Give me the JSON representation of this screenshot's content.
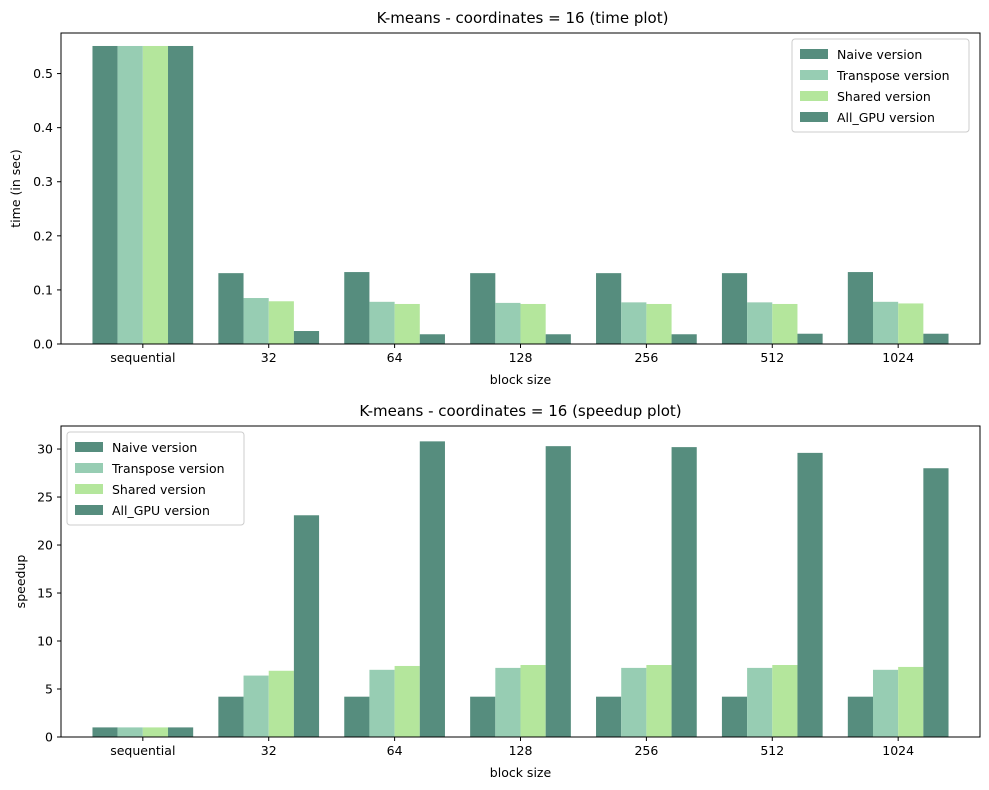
{
  "colors": {
    "naive": "#568d7e",
    "transpose": "#97cdb3",
    "shared": "#b4e69c",
    "all_gpu": "#568d7e"
  },
  "chart_data": [
    {
      "type": "bar",
      "title": "K-means - coordinates = 16 (time plot)",
      "xlabel": "block size",
      "ylabel": "time (in sec)",
      "ylim": [
        0,
        0.575
      ],
      "yticks": [
        "0.0",
        "0.1",
        "0.2",
        "0.3",
        "0.4",
        "0.5"
      ],
      "ytick_values": [
        0,
        0.1,
        0.2,
        0.3,
        0.4,
        0.5
      ],
      "categories": [
        "sequential",
        "32",
        "64",
        "128",
        "256",
        "512",
        "1024"
      ],
      "legend_position": "top-right",
      "series": [
        {
          "name": "Naive version",
          "color_key": "naive",
          "values": [
            0.551,
            0.131,
            0.133,
            0.131,
            0.131,
            0.131,
            0.133
          ]
        },
        {
          "name": "Transpose version",
          "color_key": "transpose",
          "values": [
            0.551,
            0.085,
            0.078,
            0.076,
            0.077,
            0.077,
            0.078
          ]
        },
        {
          "name": "Shared version",
          "color_key": "shared",
          "values": [
            0.551,
            0.079,
            0.074,
            0.074,
            0.074,
            0.074,
            0.075
          ]
        },
        {
          "name": "All_GPU version",
          "color_key": "all_gpu",
          "values": [
            0.551,
            0.024,
            0.018,
            0.018,
            0.018,
            0.019,
            0.019
          ]
        }
      ]
    },
    {
      "type": "bar",
      "title": "K-means - coordinates = 16 (speedup plot)",
      "xlabel": "block size",
      "ylabel": "speedup",
      "ylim": [
        0,
        32.4
      ],
      "yticks": [
        "0",
        "5",
        "10",
        "15",
        "20",
        "25",
        "30"
      ],
      "ytick_values": [
        0,
        5,
        10,
        15,
        20,
        25,
        30
      ],
      "categories": [
        "sequential",
        "32",
        "64",
        "128",
        "256",
        "512",
        "1024"
      ],
      "legend_position": "top-left",
      "series": [
        {
          "name": "Naive version",
          "color_key": "naive",
          "values": [
            1.0,
            4.2,
            4.2,
            4.2,
            4.2,
            4.2,
            4.2
          ]
        },
        {
          "name": "Transpose version",
          "color_key": "transpose",
          "values": [
            1.0,
            6.4,
            7.0,
            7.2,
            7.2,
            7.2,
            7.0
          ]
        },
        {
          "name": "Shared version",
          "color_key": "shared",
          "values": [
            1.0,
            6.9,
            7.4,
            7.5,
            7.5,
            7.5,
            7.3
          ]
        },
        {
          "name": "All_GPU version",
          "color_key": "all_gpu",
          "values": [
            1.0,
            23.1,
            30.8,
            30.3,
            30.2,
            29.6,
            28.0
          ]
        }
      ]
    }
  ]
}
